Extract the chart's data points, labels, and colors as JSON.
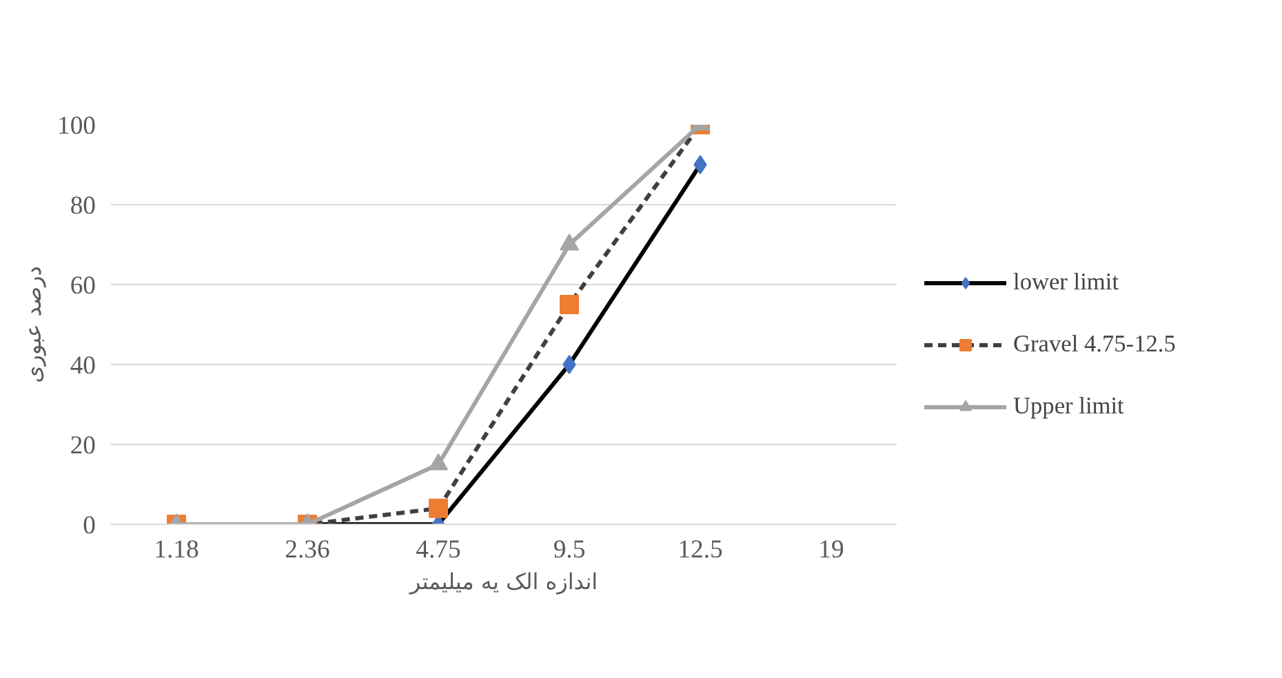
{
  "chart_data": {
    "type": "line",
    "xlabel": "اندازه الک یه میلیمتر",
    "ylabel": "درصد عبوری",
    "categories": [
      "1.18",
      "2.36",
      "4.75",
      "9.5",
      "12.5",
      "19"
    ],
    "series": [
      {
        "name": "lower limit",
        "color": "#000000",
        "colors": [
          "#4472c4",
          "#4472c4",
          "#4472c4",
          "#4472c4",
          "#4472c4",
          "#4472c4"
        ],
        "marker": "diamond",
        "line_style": "solid",
        "values": [
          0,
          0,
          0,
          40,
          90,
          null
        ]
      },
      {
        "name": "Gravel 4.75-12.5",
        "color": "#404040",
        "colors": [
          "#ed7d31",
          "#ed7d31",
          "#ed7d31",
          "#ed7d31",
          "#ed7d31",
          "#ed7d31"
        ],
        "marker": "square",
        "line_style": "dashed",
        "values": [
          0,
          0,
          4,
          55,
          100,
          null
        ]
      },
      {
        "name": "Upper limit",
        "color": "#a5a5a5",
        "colors": [
          "#a5a5a5",
          "#a5a5a5",
          "#a5a5a5",
          "#a5a5a5",
          "#a5a5a5",
          "#a5a5a5"
        ],
        "marker": "triangle",
        "line_style": "solid",
        "values": [
          0,
          0,
          15,
          70,
          100,
          null
        ]
      }
    ],
    "ylim": [
      0,
      100
    ],
    "yticks": [
      0,
      20,
      40,
      60,
      80,
      100
    ],
    "grid": "y",
    "legend": "right"
  }
}
